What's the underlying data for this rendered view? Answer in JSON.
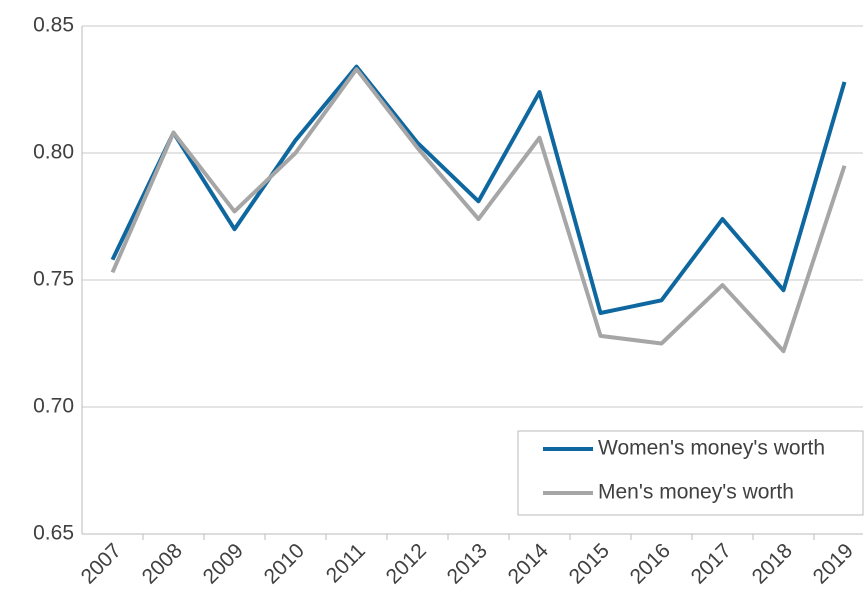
{
  "chart_data": {
    "type": "line",
    "categories": [
      "2007",
      "2008",
      "2009",
      "2010",
      "2011",
      "2012",
      "2013",
      "2014",
      "2015",
      "2016",
      "2017",
      "2018",
      "2019"
    ],
    "series": [
      {
        "name": "Women's money's worth",
        "color": "#0f67a0",
        "values": [
          0.758,
          0.808,
          0.77,
          0.805,
          0.834,
          0.804,
          0.781,
          0.824,
          0.737,
          0.742,
          0.774,
          0.746,
          0.828
        ]
      },
      {
        "name": "Men's money's worth",
        "color": "#a6a6a6",
        "values": [
          0.753,
          0.808,
          0.777,
          0.8,
          0.833,
          0.802,
          0.774,
          0.806,
          0.728,
          0.725,
          0.748,
          0.722,
          0.795
        ]
      }
    ],
    "ylim": [
      0.65,
      0.85
    ],
    "yticks": [
      0.65,
      {
        "value": 0.7,
        "label": "0.70"
      },
      0.75,
      {
        "value": 0.8,
        "label": "0.80"
      },
      0.85
    ],
    "grid": true,
    "legend": "lower right"
  }
}
